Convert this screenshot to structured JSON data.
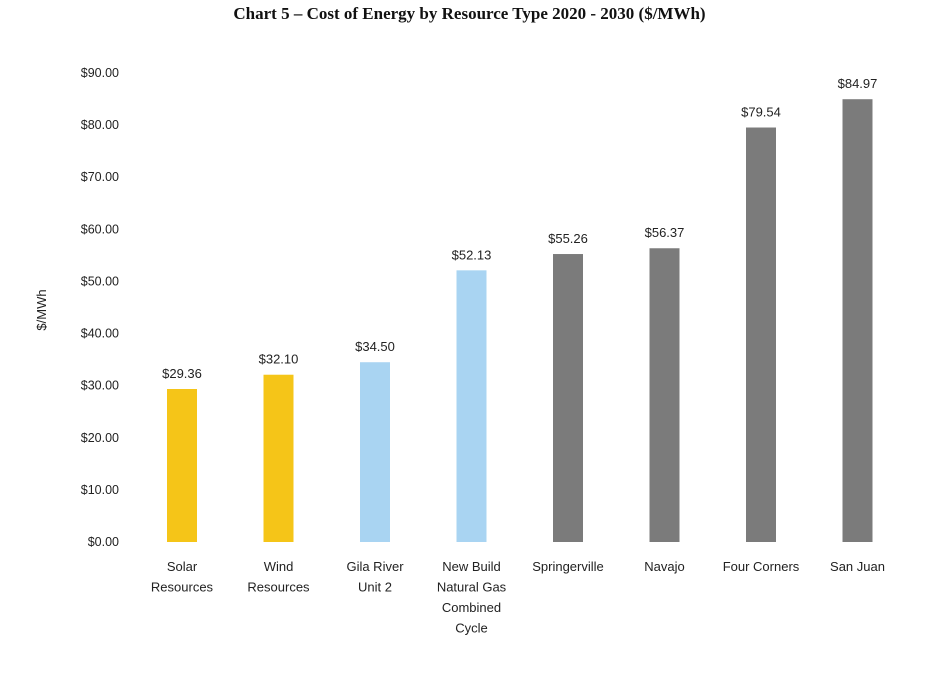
{
  "chart_data": {
    "type": "bar",
    "title": "Chart 5 – Cost of Energy by Resource Type 2020 - 2030 ($/MWh)",
    "ylabel": "$/MWh",
    "xlabel": "",
    "ylim": [
      0,
      90
    ],
    "yticks": [
      "$0.00",
      "$10.00",
      "$20.00",
      "$30.00",
      "$40.00",
      "$50.00",
      "$60.00",
      "$70.00",
      "$80.00",
      "$90.00"
    ],
    "grid": false,
    "categories": [
      [
        "Solar",
        "Resources"
      ],
      [
        "Wind",
        "Resources"
      ],
      [
        "Gila River",
        "Unit 2"
      ],
      [
        "New Build",
        "Natural Gas",
        "Combined",
        "Cycle"
      ],
      [
        "Springerville"
      ],
      [
        "Navajo"
      ],
      [
        "Four Corners"
      ],
      [
        "San Juan"
      ]
    ],
    "values": [
      29.36,
      32.1,
      34.5,
      52.13,
      55.26,
      56.37,
      79.54,
      84.97
    ],
    "labels": [
      "$29.36",
      "$32.10",
      "$34.50",
      "$52.13",
      "$55.26",
      "$56.37",
      "$79.54",
      "$84.97"
    ],
    "colors": [
      "#f5c518",
      "#f5c518",
      "#a9d4f2",
      "#a9d4f2",
      "#7b7b7b",
      "#7b7b7b",
      "#7b7b7b",
      "#7b7b7b"
    ]
  }
}
